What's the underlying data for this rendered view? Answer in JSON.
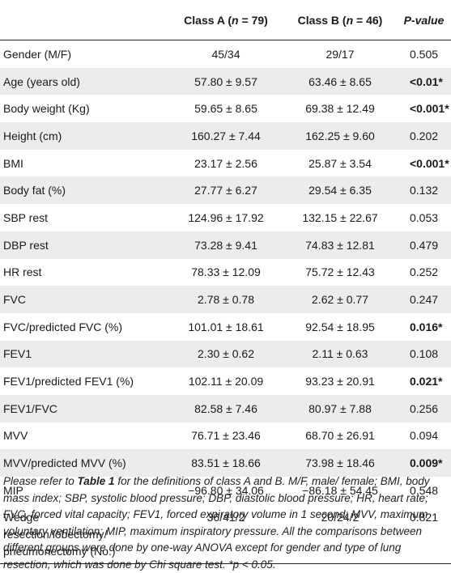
{
  "header": {
    "class_a_label": "Class A (",
    "class_a_n": "n",
    "class_a_count": " = 79)",
    "class_b_label": "Class B (",
    "class_b_n": "n",
    "class_b_count": " = 46)",
    "p_value": "P-value"
  },
  "rows": [
    {
      "label": "Gender (M/F)",
      "a": "45/34",
      "b": "29/17",
      "p": "0.505"
    },
    {
      "label": "Age (years old)",
      "a": "57.80 ± 9.57",
      "b": "63.46 ± 8.65",
      "p": "<0.01*"
    },
    {
      "label": "Body weight (Kg)",
      "a": "59.65 ± 8.65",
      "b": "69.38 ± 12.49",
      "p": "<0.001*"
    },
    {
      "label": "Height (cm)",
      "a": "160.27 ± 7.44",
      "b": "162.25 ± 9.60",
      "p": "0.202"
    },
    {
      "label": "BMI",
      "a": "23.17 ± 2.56",
      "b": "25.87 ± 3.54",
      "p": "<0.001*"
    },
    {
      "label": "Body fat (%)",
      "a": "27.77 ± 6.27",
      "b": "29.54 ± 6.35",
      "p": "0.132"
    },
    {
      "label": "SBP rest",
      "a": "124.96 ± 17.92",
      "b": "132.15 ± 22.67",
      "p": "0.053"
    },
    {
      "label": "DBP rest",
      "a": "73.28 ± 9.41",
      "b": "74.83 ± 12.81",
      "p": "0.479"
    },
    {
      "label": "HR rest",
      "a": "78.33 ± 12.09",
      "b": "75.72 ± 12.43",
      "p": "0.252"
    },
    {
      "label": "FVC",
      "a": "2.78 ± 0.78",
      "b": "2.62 ± 0.77",
      "p": "0.247"
    },
    {
      "label": "FVC/predicted FVC (%)",
      "a": "101.01 ± 18.61",
      "b": "92.54 ± 18.95",
      "p": "0.016*"
    },
    {
      "label": "FEV1",
      "a": "2.30 ± 0.62",
      "b": "2.11 ± 0.63",
      "p": "0.108"
    },
    {
      "label": "FEV1/predicted FEV1 (%)",
      "a": "102.11 ± 20.09",
      "b": "93.23 ± 20.91",
      "p": "0.021*"
    },
    {
      "label": "FEV1/FVC",
      "a": "82.58 ± 7.46",
      "b": "80.97 ± 7.88",
      "p": "0.256"
    },
    {
      "label": "MVV",
      "a": "76.71 ± 23.46",
      "b": "68.70 ± 26.91",
      "p": "0.094"
    },
    {
      "label": "MVV/predicted MVV (%)",
      "a": "83.51 ± 18.66",
      "b": "73.98 ± 18.46",
      "p": "0.009*"
    },
    {
      "label": "MIP",
      "a": "−96.80 ± 34.06",
      "b": "−86.18 ± 54.45",
      "p": "0.548"
    }
  ],
  "last_row": {
    "label_line1": "Wedge",
    "label_line2": "resection/lobectomy/",
    "label_line3": "pneumonectomy (No.)",
    "a": "36/41/2",
    "b": "20/24/2",
    "p": "0.821"
  },
  "note": {
    "prefix": "Please refer to ",
    "table_ref": "Table 1",
    "body": " for the definitions of class A and B. M/F, male/ female; BMI, body mass index; SBP, systolic blood pressure; DBP, diastolic blood pressure; HR, heart rate; FVC, forced vital capacity; FEV1, forced expiratory volume in 1 second; MVV, maximum voluntary ventilation; MIP, maximum inspiratory pressure. All the comparisons between different groups were done by one-way ANOVA except for gender and type of lung resection, which was done by Chi square test. *p < 0.05."
  }
}
